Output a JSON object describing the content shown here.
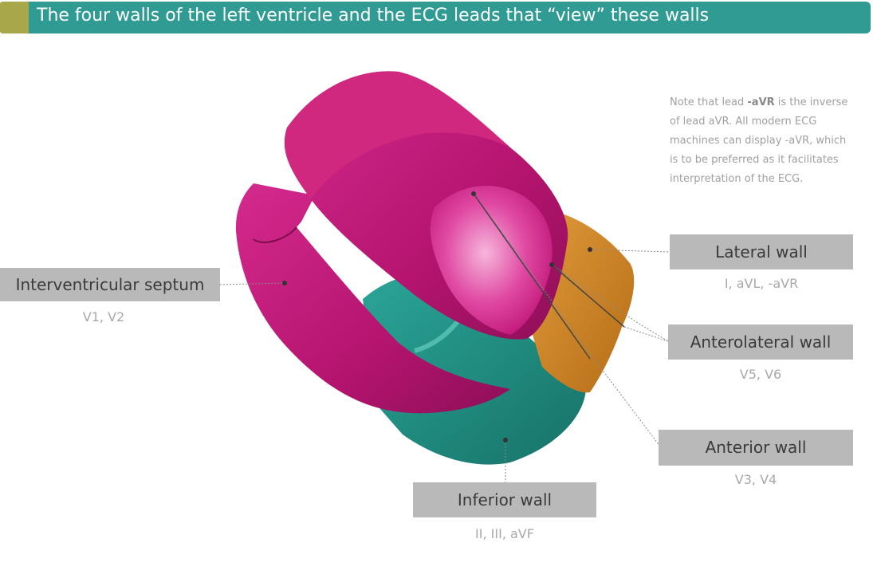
{
  "header": {
    "title": "The four walls of the left ventricle and the ECG leads that “view” these walls"
  },
  "note": {
    "prefix": "Note that lead ",
    "lead": "-aVR",
    "suffix": " is the inverse of lead aVR. All modern ECG machines can display -aVR, which is to be preferred as it facilitates interpretation of the ECG."
  },
  "walls": [
    {
      "label": "Interventricular septum",
      "leads": "V1, V2"
    },
    {
      "label": "Lateral wall",
      "leads": "I, aVL, -aVR"
    },
    {
      "label": "Anterolateral wall",
      "leads": "V5, V6"
    },
    {
      "label": "Anterior wall",
      "leads": "V3, V4"
    },
    {
      "label": "Inferior wall",
      "leads": "II, III, aVF"
    }
  ],
  "colors": {
    "header_bar": "#2f9b92",
    "header_accent": "#a8a84a",
    "magenta": "#c2187a",
    "teal": "#1f8e83",
    "orange": "#c98222",
    "label_box": "#b9b9b9"
  }
}
